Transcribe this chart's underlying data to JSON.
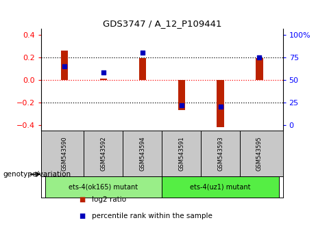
{
  "title": "GDS3747 / A_12_P109441",
  "samples": [
    "GSM543590",
    "GSM543592",
    "GSM543594",
    "GSM543591",
    "GSM543593",
    "GSM543595"
  ],
  "log2_ratios": [
    0.26,
    0.01,
    0.19,
    -0.27,
    -0.42,
    0.19
  ],
  "percentile_ranks": [
    65,
    58,
    80,
    22,
    20,
    75
  ],
  "bar_color": "#bb2200",
  "dot_color": "#0000bb",
  "ylim": [
    -0.45,
    0.45
  ],
  "y_left_ticks": [
    -0.4,
    -0.2,
    0.0,
    0.2,
    0.4
  ],
  "y_right_ticks": [
    0,
    25,
    50,
    75,
    100
  ],
  "y_right_tick_positions": [
    -0.4,
    -0.2,
    0.0,
    0.2,
    0.4
  ],
  "dotted_lines_black": [
    0.2,
    -0.2
  ],
  "dotted_line_red": 0.0,
  "groups": [
    {
      "label": "ets-4(ok165) mutant",
      "indices": [
        0,
        1,
        2
      ],
      "color": "#99ee88"
    },
    {
      "label": "ets-4(uz1) mutant",
      "indices": [
        3,
        4,
        5
      ],
      "color": "#55ee44"
    }
  ],
  "legend_items": [
    {
      "label": "log2 ratio",
      "color": "#bb2200"
    },
    {
      "label": "percentile rank within the sample",
      "color": "#0000bb"
    }
  ],
  "bg_xtick": "#c8c8c8",
  "bg_group": "#55ee44",
  "genotype_label": "genotype/variation",
  "bar_width": 0.18
}
